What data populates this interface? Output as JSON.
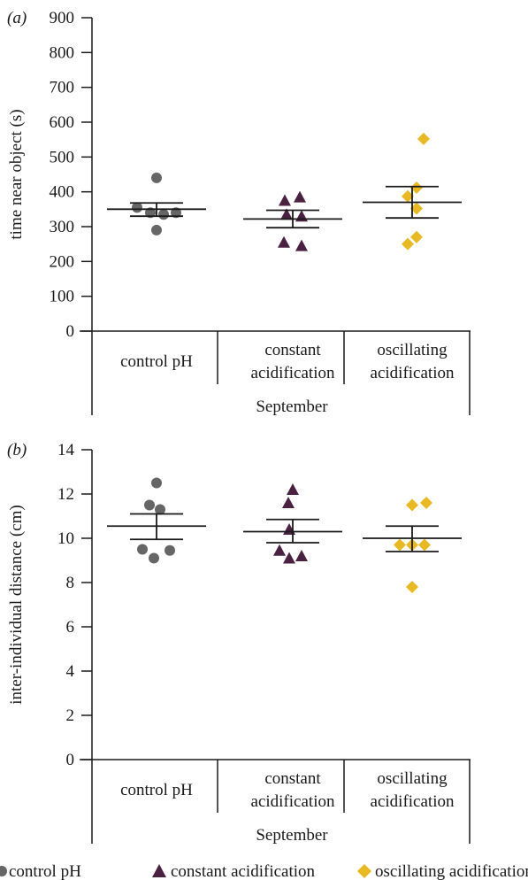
{
  "colors": {
    "control": "#666666",
    "constant": "#4a2141",
    "oscillating": "#e8b923",
    "axis": "#1a1a1a"
  },
  "legend": {
    "control_label": "control pH",
    "constant_label": "constant acidification",
    "oscillating_label": "oscillating acidification"
  },
  "chart_data": [
    {
      "type": "scatter",
      "panel_label": "(a)",
      "ylabel": "time near object (s)",
      "ylim": [
        0,
        900
      ],
      "yticks": [
        0,
        100,
        200,
        300,
        400,
        500,
        600,
        700,
        800,
        900
      ],
      "group_header": "September",
      "categories": [
        {
          "line1": "control pH",
          "line2": ""
        },
        {
          "line1": "constant",
          "line2": "acidification"
        },
        {
          "line1": "oscillating",
          "line2": "acidification"
        }
      ],
      "series": [
        {
          "name": "control pH",
          "marker": "circle",
          "color": "#666666",
          "points": [
            440,
            355,
            340,
            335,
            340,
            290
          ],
          "mean": 350,
          "sem_low": 330,
          "sem_high": 368
        },
        {
          "name": "constant acidification",
          "marker": "triangle",
          "color": "#4a2141",
          "points": [
            375,
            385,
            335,
            330,
            255,
            245
          ],
          "mean": 322,
          "sem_low": 297,
          "sem_high": 347
        },
        {
          "name": "oscillating acidification",
          "marker": "diamond",
          "color": "#e8b923",
          "points": [
            552,
            412,
            387,
            352,
            270,
            250
          ],
          "mean": 370,
          "sem_low": 325,
          "sem_high": 415
        }
      ]
    },
    {
      "type": "scatter",
      "panel_label": "(b)",
      "ylabel": "inter-individual distance (cm)",
      "ylim": [
        0,
        14
      ],
      "yticks": [
        0,
        2,
        4,
        6,
        8,
        10,
        12,
        14
      ],
      "group_header": "September",
      "categories": [
        {
          "line1": "control pH",
          "line2": ""
        },
        {
          "line1": "constant",
          "line2": "acidification"
        },
        {
          "line1": "oscillating",
          "line2": "acidification"
        }
      ],
      "series": [
        {
          "name": "control pH",
          "marker": "circle",
          "color": "#666666",
          "points": [
            12.5,
            11.5,
            11.3,
            9.5,
            9.45,
            9.1
          ],
          "mean": 10.55,
          "sem_low": 9.95,
          "sem_high": 11.1
        },
        {
          "name": "constant acidification",
          "marker": "triangle",
          "color": "#4a2141",
          "points": [
            12.2,
            11.6,
            10.4,
            9.45,
            9.2,
            9.1
          ],
          "mean": 10.3,
          "sem_low": 9.8,
          "sem_high": 10.85
        },
        {
          "name": "oscillating acidification",
          "marker": "diamond",
          "color": "#e8b923",
          "points": [
            11.5,
            11.6,
            9.7,
            9.7,
            9.7,
            7.8
          ],
          "mean": 10.0,
          "sem_low": 9.4,
          "sem_high": 10.55
        }
      ]
    }
  ]
}
